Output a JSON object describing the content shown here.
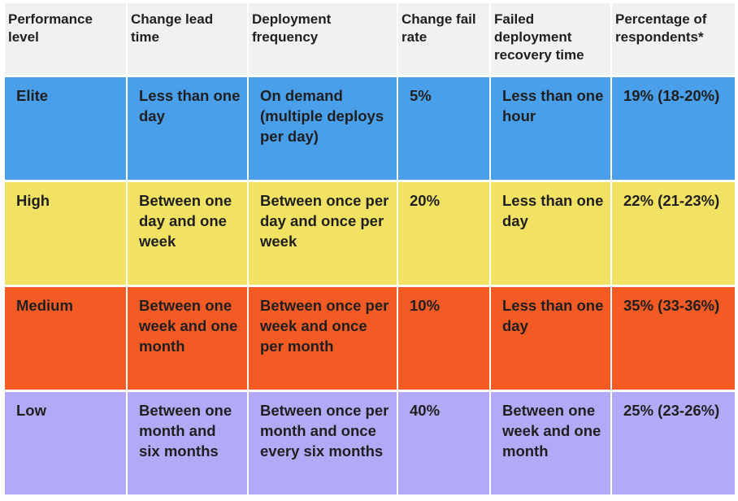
{
  "table": {
    "header": [
      "Performance level",
      "Change lead time",
      "Deployment frequency",
      "Change fail rate",
      "Failed deployment recovery time",
      "Percentage of respondents*"
    ],
    "rows": [
      [
        "Elite",
        "Less than one day",
        "On demand (multiple deploys per day)",
        "5%",
        "Less than one hour",
        "19% (18-20%)"
      ],
      [
        "High",
        "Between one day and one week",
        "Between once per day and once per week",
        "20%",
        "Less than one day",
        "22% (21-23%)"
      ],
      [
        "Medium",
        "Between one week and one month",
        "Between once per week and once per month",
        "10%",
        "Less than one day",
        "35% (33-36%)"
      ],
      [
        "Low",
        "Between one month and six months",
        "Between once per month and once every six months",
        "40%",
        "Between one week and one month",
        "25% (23-26%)"
      ]
    ],
    "row_colors": [
      "#4a9fea",
      "#f2e264",
      "#f45b24",
      "#b3aaf7"
    ]
  }
}
